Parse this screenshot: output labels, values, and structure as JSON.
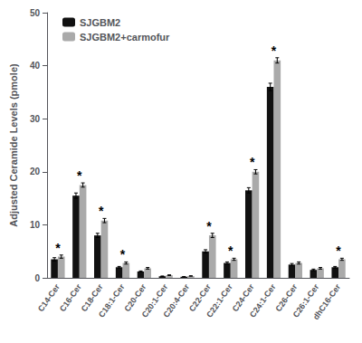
{
  "chart_data": {
    "type": "bar",
    "categories": [
      "C14-Cer",
      "C16-Cer",
      "C18-Cer",
      "C18:1-Cer",
      "C20-Cer",
      "C20:1-Cer",
      "C20:4-Cer",
      "C22-Cer",
      "C22:1-Cer",
      "C24-Cer",
      "C24:1-Cer",
      "C26-Cer",
      "C26:1-Cer",
      "dhC16-Cer"
    ],
    "series": [
      {
        "name": "SJGBM2",
        "color": "#111111",
        "values": [
          3.5,
          15.5,
          8.0,
          2.0,
          1.2,
          0.3,
          0.2,
          5.0,
          2.8,
          16.5,
          36.0,
          2.5,
          1.5,
          2.0
        ],
        "errors": [
          0.3,
          0.5,
          0.4,
          0.15,
          0.1,
          0.05,
          0.03,
          0.3,
          0.2,
          0.5,
          0.7,
          0.2,
          0.15,
          0.15
        ]
      },
      {
        "name": "SJGBM2+carmofur",
        "color": "#aaaaaa",
        "values": [
          4.0,
          17.5,
          10.8,
          2.8,
          1.8,
          0.5,
          0.35,
          8.0,
          3.5,
          20.0,
          41.0,
          2.8,
          1.8,
          3.5
        ],
        "errors": [
          0.3,
          0.4,
          0.4,
          0.2,
          0.15,
          0.06,
          0.04,
          0.4,
          0.2,
          0.4,
          0.5,
          0.2,
          0.15,
          0.2
        ]
      }
    ],
    "annotations": [
      {
        "x": "C14-Cer",
        "text": "*"
      },
      {
        "x": "C16-Cer",
        "text": "*"
      },
      {
        "x": "C18-Cer",
        "text": "*"
      },
      {
        "x": "C18:1-Cer",
        "text": "*"
      },
      {
        "x": "C22-Cer",
        "text": "*"
      },
      {
        "x": "C22:1-Cer",
        "text": "*"
      },
      {
        "x": "C24-Cer",
        "text": "*"
      },
      {
        "x": "C24:1-Cer",
        "text": "*"
      },
      {
        "x": "dhC16-Cer",
        "text": "*"
      }
    ],
    "ylabel": "Adjusted Ceramide Levels (pmole)",
    "ylim": [
      0,
      50
    ],
    "yticks": [
      0,
      10,
      20,
      30,
      40,
      50
    ],
    "grid": false,
    "legend": "upper left"
  }
}
